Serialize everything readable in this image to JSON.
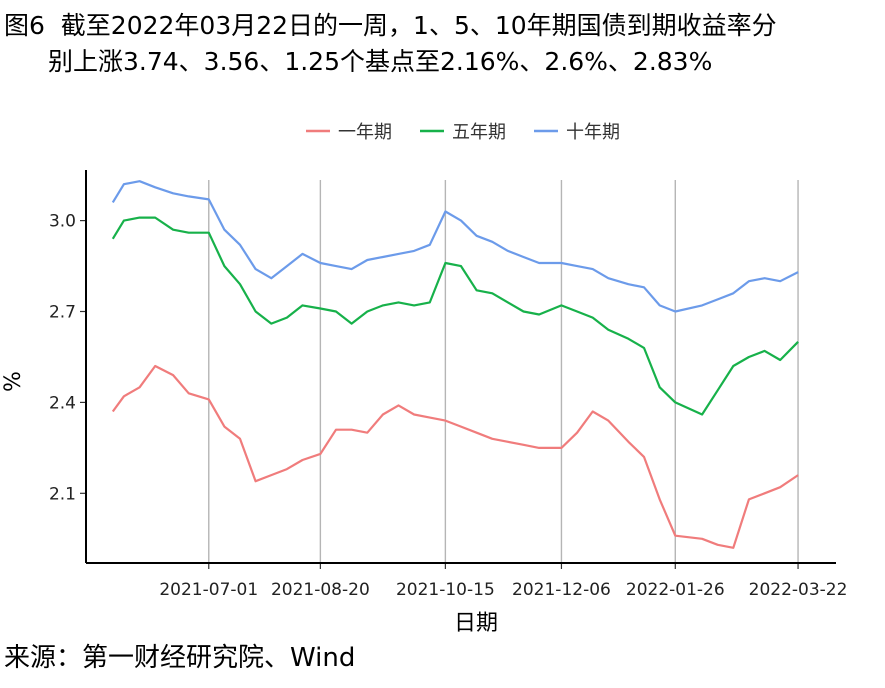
{
  "title_line1": "图6  截至2022年03月22日的一周，1、5、10年期国债到期收益率分",
  "title_line2": "别上涨3.74、3.56、1.25个基点至2.16%、2.6%、2.83%",
  "source": "来源：第一财经研究院、Wind",
  "chart_data": {
    "type": "line",
    "xlabel": "日期",
    "ylabel": "%",
    "x_ticks": [
      "2021-07-01",
      "2021-08-20",
      "2021-10-15",
      "2021-12-06",
      "2022-01-26",
      "2022-03-22"
    ],
    "y_ticks": [
      "2.1",
      "2.4",
      "2.7",
      "3.0"
    ],
    "ylim": [
      1.87,
      3.2
    ],
    "grid": "vertical major gridlines",
    "legend_position": "top",
    "x": [
      "2021-05-19",
      "2021-05-24",
      "2021-05-31",
      "2021-06-07",
      "2021-06-15",
      "2021-06-22",
      "2021-07-01",
      "2021-07-08",
      "2021-07-15",
      "2021-07-22",
      "2021-07-29",
      "2021-08-05",
      "2021-08-12",
      "2021-08-20",
      "2021-08-27",
      "2021-09-03",
      "2021-09-10",
      "2021-09-17",
      "2021-09-24",
      "2021-10-01",
      "2021-10-08",
      "2021-10-15",
      "2021-10-22",
      "2021-10-29",
      "2021-11-05",
      "2021-11-12",
      "2021-11-19",
      "2021-11-26",
      "2021-12-06",
      "2021-12-13",
      "2021-12-20",
      "2021-12-27",
      "2022-01-05",
      "2022-01-12",
      "2022-01-19",
      "2022-01-26",
      "2022-02-07",
      "2022-02-14",
      "2022-02-21",
      "2022-02-28",
      "2022-03-07",
      "2022-03-14",
      "2022-03-22"
    ],
    "series": [
      {
        "name": "一年期",
        "color": "#F07C7C",
        "values": [
          2.37,
          2.42,
          2.45,
          2.52,
          2.49,
          2.43,
          2.41,
          2.32,
          2.28,
          2.14,
          2.16,
          2.18,
          2.21,
          2.23,
          2.31,
          2.31,
          2.3,
          2.36,
          2.39,
          2.36,
          2.35,
          2.34,
          2.32,
          2.3,
          2.28,
          2.27,
          2.26,
          2.25,
          2.25,
          2.3,
          2.37,
          2.34,
          2.27,
          2.22,
          2.08,
          1.96,
          1.95,
          1.93,
          1.92,
          2.08,
          2.1,
          2.12,
          2.16
        ]
      },
      {
        "name": "五年期",
        "color": "#17B14A",
        "values": [
          2.94,
          3.0,
          3.01,
          3.01,
          2.97,
          2.96,
          2.96,
          2.85,
          2.79,
          2.7,
          2.66,
          2.68,
          2.72,
          2.71,
          2.7,
          2.66,
          2.7,
          2.72,
          2.73,
          2.72,
          2.73,
          2.86,
          2.85,
          2.77,
          2.76,
          2.73,
          2.7,
          2.69,
          2.72,
          2.7,
          2.68,
          2.64,
          2.61,
          2.58,
          2.45,
          2.4,
          2.36,
          2.44,
          2.52,
          2.55,
          2.57,
          2.54,
          2.6
        ]
      },
      {
        "name": "十年期",
        "color": "#6C9BEA",
        "values": [
          3.06,
          3.12,
          3.13,
          3.11,
          3.09,
          3.08,
          3.07,
          2.97,
          2.92,
          2.84,
          2.81,
          2.85,
          2.89,
          2.86,
          2.85,
          2.84,
          2.87,
          2.88,
          2.89,
          2.9,
          2.92,
          3.03,
          3.0,
          2.95,
          2.93,
          2.9,
          2.88,
          2.86,
          2.86,
          2.85,
          2.84,
          2.81,
          2.79,
          2.78,
          2.72,
          2.7,
          2.72,
          2.74,
          2.76,
          2.8,
          2.81,
          2.8,
          2.83
        ]
      }
    ]
  }
}
